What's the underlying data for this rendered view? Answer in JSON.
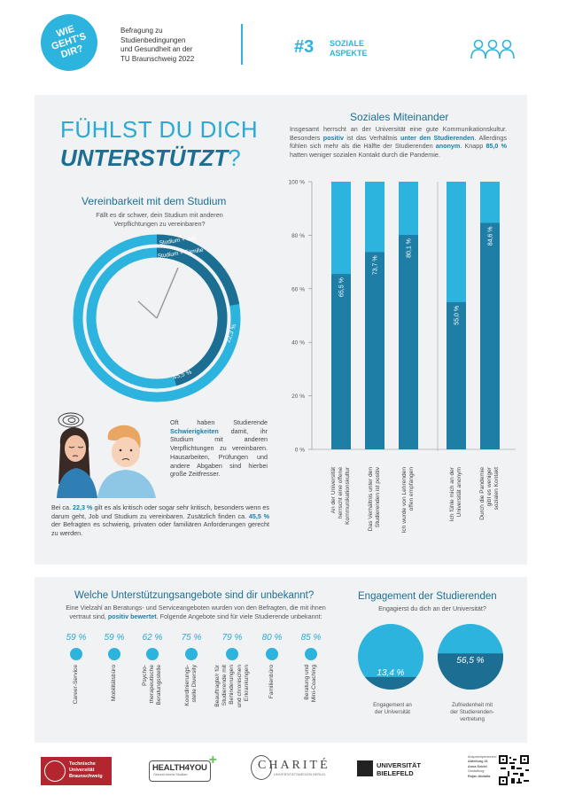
{
  "header": {
    "badge_line1": "WIE",
    "badge_line2": "GEHT'S",
    "badge_line3": "DIR?",
    "subtitle_line1": "Befragung zu",
    "subtitle_line2": "Studienbedingungen",
    "subtitle_line3": "und Gesundheit an der",
    "subtitle_line4": "TU Braunschweig 2022",
    "issue_number": "#3",
    "issue_title_line1": "SOZIALE",
    "issue_title_line2": "ASPEKTE",
    "people_icon": "people-group-icon"
  },
  "hero": {
    "line1": "FÜHLST DU DICH",
    "line2": "UNTERSTÜTZT",
    "qmark": "?"
  },
  "compatibility": {
    "title": "Vereinbarkeit mit dem Studium",
    "question_line1": "Fällt es dir schwer, dein Studium mit anderen",
    "question_line2": "Verpflichtungen zu vereinbaren?",
    "ring_outer_label": "Studium + Job",
    "ring_inner_label": "Studium + Familie",
    "value_job": "22,3 %",
    "value_family": "45,5 %",
    "chart_data": {
      "type": "pie",
      "series": [
        {
          "name": "Studium + Job",
          "value": 22.3
        },
        {
          "name": "Studium + Familie",
          "value": 45.5
        }
      ]
    },
    "text1_a": "Oft haben Studierende ",
    "text1_b": "Schwierigkeiten",
    "text1_c": " damit, ihr Studium mit anderen Verpflichtungen zu vereinbaren. Hausarbeiten, Prüfungen und andere Abgaben sind hierbei große Zeitfresser.",
    "text2_a": "Bei ca. ",
    "text2_b": "22,3 %",
    "text2_c": " gilt es als kritisch oder sogar sehr kritisch, besonders wenn es darum geht, Job und Studium zu vereinbaren. Zusätzlich finden ca. ",
    "text2_d": "45,5 %",
    "text2_e": " der Befragten es schwierig, privaten oder familiären Anforderungen gerecht zu werden."
  },
  "social": {
    "title": "Soziales Miteinander",
    "intro_a": "Insgesamt herrscht an der Universität eine gute Kommunikations­kultur. Besonders ",
    "intro_b": "positiv",
    "intro_c": " ist das Verhältnis ",
    "intro_d": "unter den Studierenden",
    "intro_e": ". Allerdings fühlen sich mehr als die Hälfte der Studierenden ",
    "intro_f": "anonym",
    "intro_g": ". Knapp ",
    "intro_h": "85,0 %",
    "intro_i": " hatten weniger sozialen Kontakt durch die Pandemie.",
    "y_ticks": [
      "0 %",
      "20 %",
      "40 %",
      "60 %",
      "80 %",
      "100 %"
    ],
    "chart_data": {
      "type": "bar",
      "ylim": [
        0,
        100
      ],
      "categories": [
        "An der Universität herrscht eine offene Kommunikationskultur",
        "Das Verhältnis unter den Studierenden ist positiv",
        "Ich wurde von Lehrenden offen empfangen",
        "Ich fühle mich an der Universität anonym",
        "Durch die Pandemie gibt es weniger sozialen Kontakt"
      ],
      "values": [
        65.5,
        73.7,
        80.1,
        55.0,
        84.6
      ],
      "value_labels": [
        "65,5 %",
        "73,7 %",
        "80,1 %",
        "55,0 %",
        "84,6 %"
      ],
      "label_lines": [
        [
          "An der Universität",
          "herrscht eine offene",
          "Kommunikationskultur"
        ],
        [
          "Das Verhältnis unter den",
          "Studierenden ist positiv"
        ],
        [
          "Ich wurde von Lehrenden",
          "offen empfangen"
        ],
        [
          "Ich fühle mich an der",
          "Universität anonym"
        ],
        [
          "Durch die Pandemie",
          "gibt es weniger",
          "sozialen Kontakt"
        ]
      ]
    }
  },
  "offers": {
    "title": "Welche Unterstützungsangebote sind dir unbekannt?",
    "intro_a": "Eine Vielzahl an Beratungs- und Serviceangeboten wurden von den Befragten, die mit ihnen vertraut sind, ",
    "intro_b": "positiv bewertet",
    "intro_c": ". Folgende Angebote sind für viele Studierende unbekannt:",
    "items": [
      {
        "pct": "59 %",
        "lines": [
          "Career-Service"
        ]
      },
      {
        "pct": "59 %",
        "lines": [
          "Mobilitätsbüro"
        ]
      },
      {
        "pct": "62 %",
        "lines": [
          "Psycho-",
          "therapeutische",
          "Beratungsstelle"
        ]
      },
      {
        "pct": "75 %",
        "lines": [
          "Koordinierungs-",
          "stelle Diversity"
        ]
      },
      {
        "pct": "79 %",
        "lines": [
          "Beauftragte/r für",
          "Studierende mit",
          "Behinderungen",
          "und chronischen",
          "Erkrankungen"
        ]
      },
      {
        "pct": "80 %",
        "lines": [
          "Familienbüro"
        ]
      },
      {
        "pct": "85 %",
        "lines": [
          "Beratung und",
          "Mini-Coaching"
        ]
      }
    ]
  },
  "engagement": {
    "title": "Engagement der Studierenden",
    "question": "Engagierst du dich an der Universität?",
    "value1": "13,4 %",
    "value2": "56,5 %",
    "label1_line1": "Engagement an",
    "label1_line2": "der Universität",
    "label2_line1": "Zufriedenheit mit",
    "label2_line2": "der Studierenden-",
    "label2_line3": "vertretung",
    "chart_data": {
      "type": "pie",
      "series": [
        {
          "name": "Engagement an der Universität",
          "value": 13.4
        },
        {
          "name": "Zufriedenheit mit der Studierendenvertretung",
          "value": 56.5
        }
      ]
    }
  },
  "footer": {
    "tu_line1": "Technische",
    "tu_line2": "Universität",
    "tu_line3": "Braunschweig",
    "health_logo": "HEALTH4YOU",
    "health_sub": "Gesund durchs Studium",
    "charite": "CHARITÉ",
    "charite_sub": "UNIVERSITÄTSMEDIZIN BERLIN",
    "bielefeld_line1": "UNIVERSITÄT",
    "bielefeld_line2": "BIELEFELD",
    "credit1": "Ansprechpersonen:",
    "credit2": "Abteilung 41",
    "credit3": "Anna Seidel",
    "credit4": "Gestaltung:",
    "credit5": "Rojan Abdalla"
  }
}
